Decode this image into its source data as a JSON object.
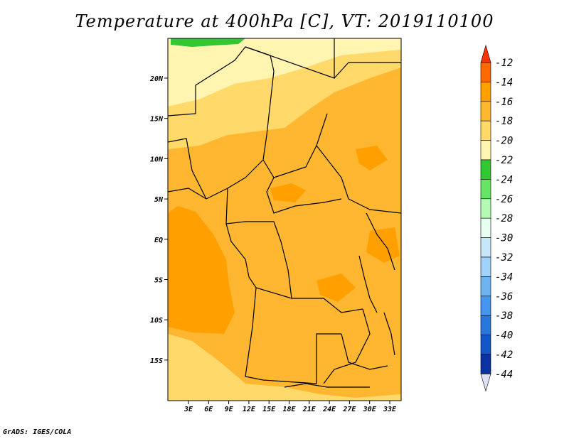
{
  "title": "Temperature at 400hPa [C], VT: 2019110100",
  "credit": "GrADS: IGES/COLA",
  "map": {
    "lat_labels": [
      "20N",
      "15N",
      "10N",
      "5N",
      "EQ",
      "5S",
      "10S",
      "15S"
    ],
    "lon_labels": [
      "3E",
      "6E",
      "9E",
      "12E",
      "15E",
      "18E",
      "21E",
      "24E",
      "27E",
      "30E",
      "33E"
    ]
  },
  "colorbar": {
    "labels": [
      "-12",
      "-14",
      "-16",
      "-18",
      "-20",
      "-22",
      "-24",
      "-26",
      "-28",
      "-30",
      "-32",
      "-34",
      "-36",
      "-38",
      "-40",
      "-42",
      "-44"
    ],
    "colors": [
      "#ff3300",
      "#ff6a00",
      "#ffa000",
      "#ffb732",
      "#ffda6a",
      "#fff5b0",
      "#32c832",
      "#64e664",
      "#b4fab4",
      "#e6fff0",
      "#c8e6fa",
      "#a0d2fa",
      "#6eb4f0",
      "#4696f0",
      "#2878dc",
      "#1455c8",
      "#0a32a0",
      "#000a6e",
      "#e1e1f5"
    ]
  },
  "legend_colors": {
    "orange": "#ffa000",
    "light_orange": "#ffb732",
    "yellow": "#ffda6a",
    "pale_yellow": "#fff5b0",
    "green": "#32c832"
  }
}
